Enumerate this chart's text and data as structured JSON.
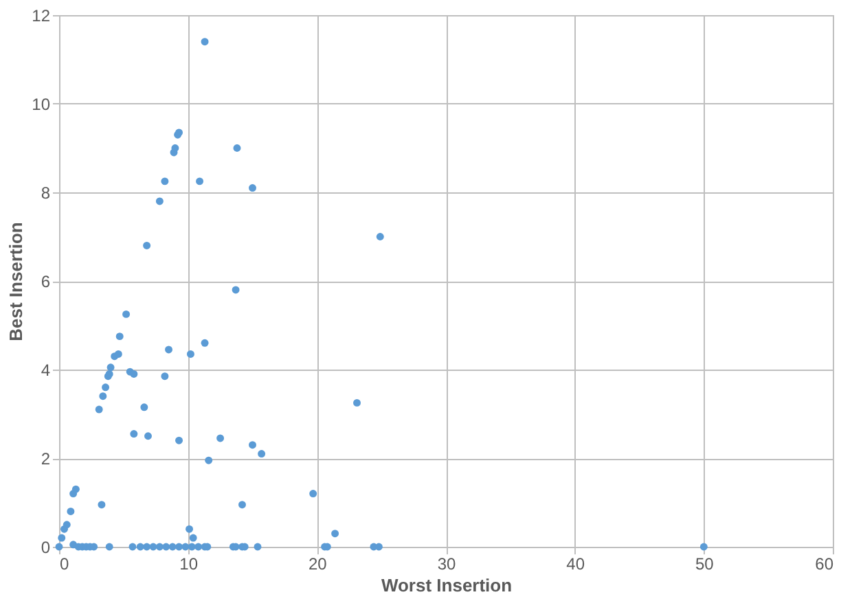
{
  "chart_data": {
    "type": "scatter",
    "xlabel": "Worst Insertion",
    "ylabel": "Best Insertion",
    "x": [
      0,
      0.2,
      0.4,
      0.6,
      0.9,
      1.1,
      1.3,
      1.1,
      3.3,
      3.1,
      3.4,
      3.6,
      3.8,
      3.9,
      4.0,
      4.3,
      4.6,
      4.7,
      5.2,
      5.5,
      5.8,
      5.8,
      6.6,
      6.8,
      6.9,
      7.8,
      8.2,
      8.2,
      8.5,
      8.9,
      9.0,
      9.2,
      9.3,
      9.3,
      10.1,
      10.4,
      10.2,
      10.9,
      11.3,
      11.3,
      11.6,
      12.5,
      13.7,
      13.8,
      14.2,
      15.0,
      15.0,
      15.7,
      19.7,
      21.4,
      23.1,
      24.9,
      1.5,
      1.8,
      2.1,
      2.4,
      2.7,
      3.9,
      5.7,
      6.3,
      6.8,
      7.3,
      7.8,
      8.3,
      8.8,
      9.3,
      9.8,
      10.3,
      10.8,
      11.3,
      11.5,
      13.5,
      13.7,
      14.2,
      14.4,
      15.4,
      20.6,
      20.8,
      24.4,
      24.8,
      50
    ],
    "values": [
      0,
      0.2,
      0.4,
      0.5,
      0.8,
      1.2,
      1.3,
      0.05,
      0.95,
      3.1,
      3.4,
      3.6,
      3.85,
      3.9,
      4.05,
      4.3,
      4.35,
      4.75,
      5.25,
      3.95,
      3.9,
      2.55,
      3.15,
      6.8,
      2.5,
      7.8,
      8.25,
      3.85,
      4.45,
      8.9,
      9.0,
      9.3,
      9.35,
      2.4,
      0.4,
      0.2,
      4.35,
      8.25,
      11.4,
      4.6,
      1.95,
      2.45,
      5.8,
      9.0,
      0.95,
      2.3,
      8.1,
      2.1,
      1.2,
      0.3,
      3.25,
      7.0,
      0,
      0,
      0,
      0,
      0,
      0,
      0,
      0,
      0,
      0,
      0,
      0,
      0,
      0,
      0,
      0,
      0,
      0,
      0,
      0,
      0,
      0,
      0,
      0,
      0,
      0,
      0,
      0,
      0
    ],
    "color": "#5b9bd5",
    "marker": "circle",
    "xlim": [
      0,
      60
    ],
    "xticks": [
      0,
      10,
      20,
      30,
      40,
      50,
      60
    ],
    "ylim": [
      0,
      12
    ],
    "yticks": [
      0,
      2,
      4,
      6,
      8,
      10,
      12
    ],
    "grid": true
  }
}
